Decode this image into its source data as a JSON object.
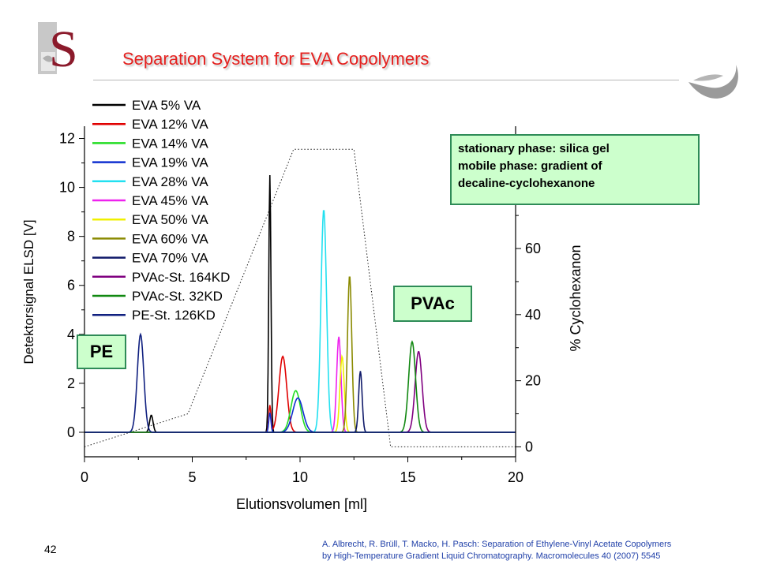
{
  "slide": {
    "title": "Separation System for EVA Copolymers",
    "page_number": "42",
    "citation_line1": "A. Albrecht, R. Brüll, T. Macko, H. Pasch: Separation of Ethylene-Vinyl Acetate Copolymers",
    "citation_line2": "by High-Temperature  Gradient Liquid Chromatography. Macromolecules 40 (2007) 5545",
    "logo_letter": "S",
    "info_box": {
      "line1": "stationary phase: silica gel",
      "line2": "mobile phase: gradient  of",
      "line3": "decaline-cyclohexanone"
    },
    "pe_label": "PE",
    "pvac_label": "PVAc"
  },
  "chart_data": {
    "type": "line",
    "xlabel": "Elutionsvolumen [ml]",
    "ylabel": "Detektorsignal ELSD [V]",
    "y2label": "% Cyclohexanon",
    "xlim": [
      0,
      20
    ],
    "ylim": [
      -1,
      12.5
    ],
    "y2lim": [
      -3,
      97
    ],
    "xticks": [
      0,
      5,
      10,
      15,
      20
    ],
    "yticks": [
      0,
      2,
      4,
      6,
      8,
      10,
      12
    ],
    "y2ticks": [
      0,
      20,
      40,
      60
    ],
    "grid": false,
    "legend_position": "top-left",
    "series": [
      {
        "name": "EVA 5% VA",
        "color": "#000000",
        "peaks": [
          [
            8.6,
            10.5,
            0.05
          ],
          [
            3.1,
            0.7,
            0.08
          ]
        ]
      },
      {
        "name": "EVA 12% VA",
        "color": "#e00000",
        "peaks": [
          [
            9.2,
            3.1,
            0.18
          ],
          [
            8.6,
            1.1,
            0.05
          ]
        ]
      },
      {
        "name": "EVA 14% VA",
        "color": "#22dd22",
        "peaks": [
          [
            9.8,
            1.7,
            0.22
          ]
        ]
      },
      {
        "name": "EVA 19% VA",
        "color": "#1030d0",
        "peaks": [
          [
            9.9,
            1.4,
            0.24
          ],
          [
            8.6,
            0.8,
            0.05
          ]
        ]
      },
      {
        "name": "EVA 28% VA",
        "color": "#22e0f0",
        "peaks": [
          [
            11.1,
            9.1,
            0.13
          ]
        ]
      },
      {
        "name": "EVA 45% VA",
        "color": "#ee22ee",
        "peaks": [
          [
            11.8,
            3.9,
            0.1
          ]
        ]
      },
      {
        "name": "EVA 50% VA",
        "color": "#f0f000",
        "peaks": [
          [
            11.95,
            3.1,
            0.1
          ]
        ]
      },
      {
        "name": "EVA 60% VA",
        "color": "#8a8a00",
        "peaks": [
          [
            12.3,
            6.4,
            0.1
          ]
        ]
      },
      {
        "name": "EVA 70% VA",
        "color": "#101a6a",
        "peaks": [
          [
            12.8,
            2.5,
            0.08
          ]
        ]
      },
      {
        "name": "PVAc-St. 164KD",
        "color": "#800080",
        "peaks": [
          [
            15.5,
            3.3,
            0.16
          ]
        ]
      },
      {
        "name": "PVAc-St. 32KD",
        "color": "#118811",
        "peaks": [
          [
            15.2,
            3.7,
            0.16
          ]
        ]
      },
      {
        "name": "PE-St. 126KD",
        "color": "#102080",
        "peaks": [
          [
            2.6,
            4.0,
            0.15
          ]
        ]
      }
    ],
    "gradient": {
      "name": "% Cyclohexanon",
      "x": [
        0,
        4.8,
        9.7,
        10.1,
        12.0,
        12.5,
        14.2,
        20
      ],
      "y": [
        0,
        10,
        90,
        90,
        90,
        90,
        0,
        0
      ]
    }
  }
}
